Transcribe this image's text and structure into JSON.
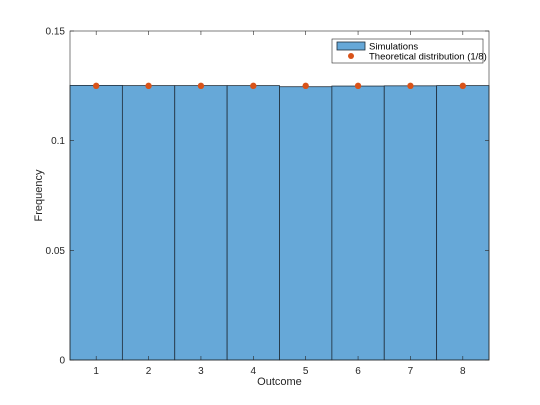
{
  "chart_data": {
    "type": "bar",
    "categories": [
      "1",
      "2",
      "3",
      "4",
      "5",
      "6",
      "7",
      "8"
    ],
    "series": [
      {
        "name": "Simulations",
        "kind": "bar",
        "color": "#66a8d8",
        "edge_color": "#1f2d3a",
        "values": [
          0.1252,
          0.1251,
          0.1251,
          0.1251,
          0.1246,
          0.1249,
          0.125,
          0.1251
        ]
      },
      {
        "name": "Theoretical distribution (1/8)",
        "kind": "scatter",
        "color": "#d95319",
        "values": [
          0.125,
          0.125,
          0.125,
          0.125,
          0.125,
          0.125,
          0.125,
          0.125
        ]
      }
    ],
    "xlabel": "Outcome",
    "ylabel": "Frequency",
    "ylim": [
      0,
      0.15
    ],
    "yticks": [
      0,
      0.05,
      0.1,
      0.15
    ],
    "ytick_labels": [
      "0",
      "0.05",
      "0.1",
      "0.15"
    ],
    "xticks": [
      1,
      2,
      3,
      4,
      5,
      6,
      7,
      8
    ],
    "grid": false,
    "legend_position": "top-right"
  }
}
